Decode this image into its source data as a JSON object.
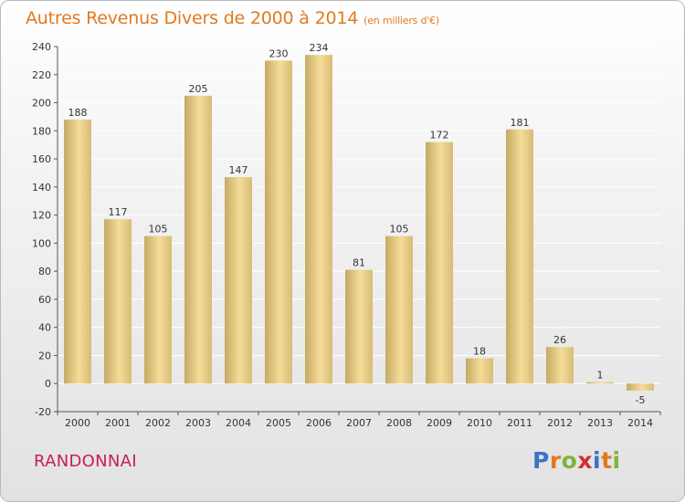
{
  "title": "Autres Revenus Divers de 2000 à 2014",
  "subtitle": "(en milliers d'€)",
  "commune": "RANDONNAI",
  "logo": "Proxiti",
  "colors": {
    "title": "#e07a1f",
    "commune": "#c61f52",
    "bar_light": "#f5dc98",
    "bar_dark": "#c5aa64"
  },
  "chart_data": {
    "type": "bar",
    "title": "Autres Revenus Divers de 2000 à 2014",
    "subtitle": "(en milliers d'€)",
    "categories": [
      "2000",
      "2001",
      "2002",
      "2003",
      "2004",
      "2005",
      "2006",
      "2007",
      "2008",
      "2009",
      "2010",
      "2011",
      "2012",
      "2013",
      "2014"
    ],
    "values": [
      188,
      117,
      105,
      205,
      147,
      230,
      234,
      81,
      105,
      172,
      18,
      181,
      26,
      1,
      -5
    ],
    "ylim": [
      -20,
      240
    ],
    "yticks": [
      -20,
      0,
      20,
      40,
      60,
      80,
      100,
      120,
      140,
      160,
      180,
      200,
      220,
      240
    ],
    "grid": true,
    "legend": "none"
  }
}
